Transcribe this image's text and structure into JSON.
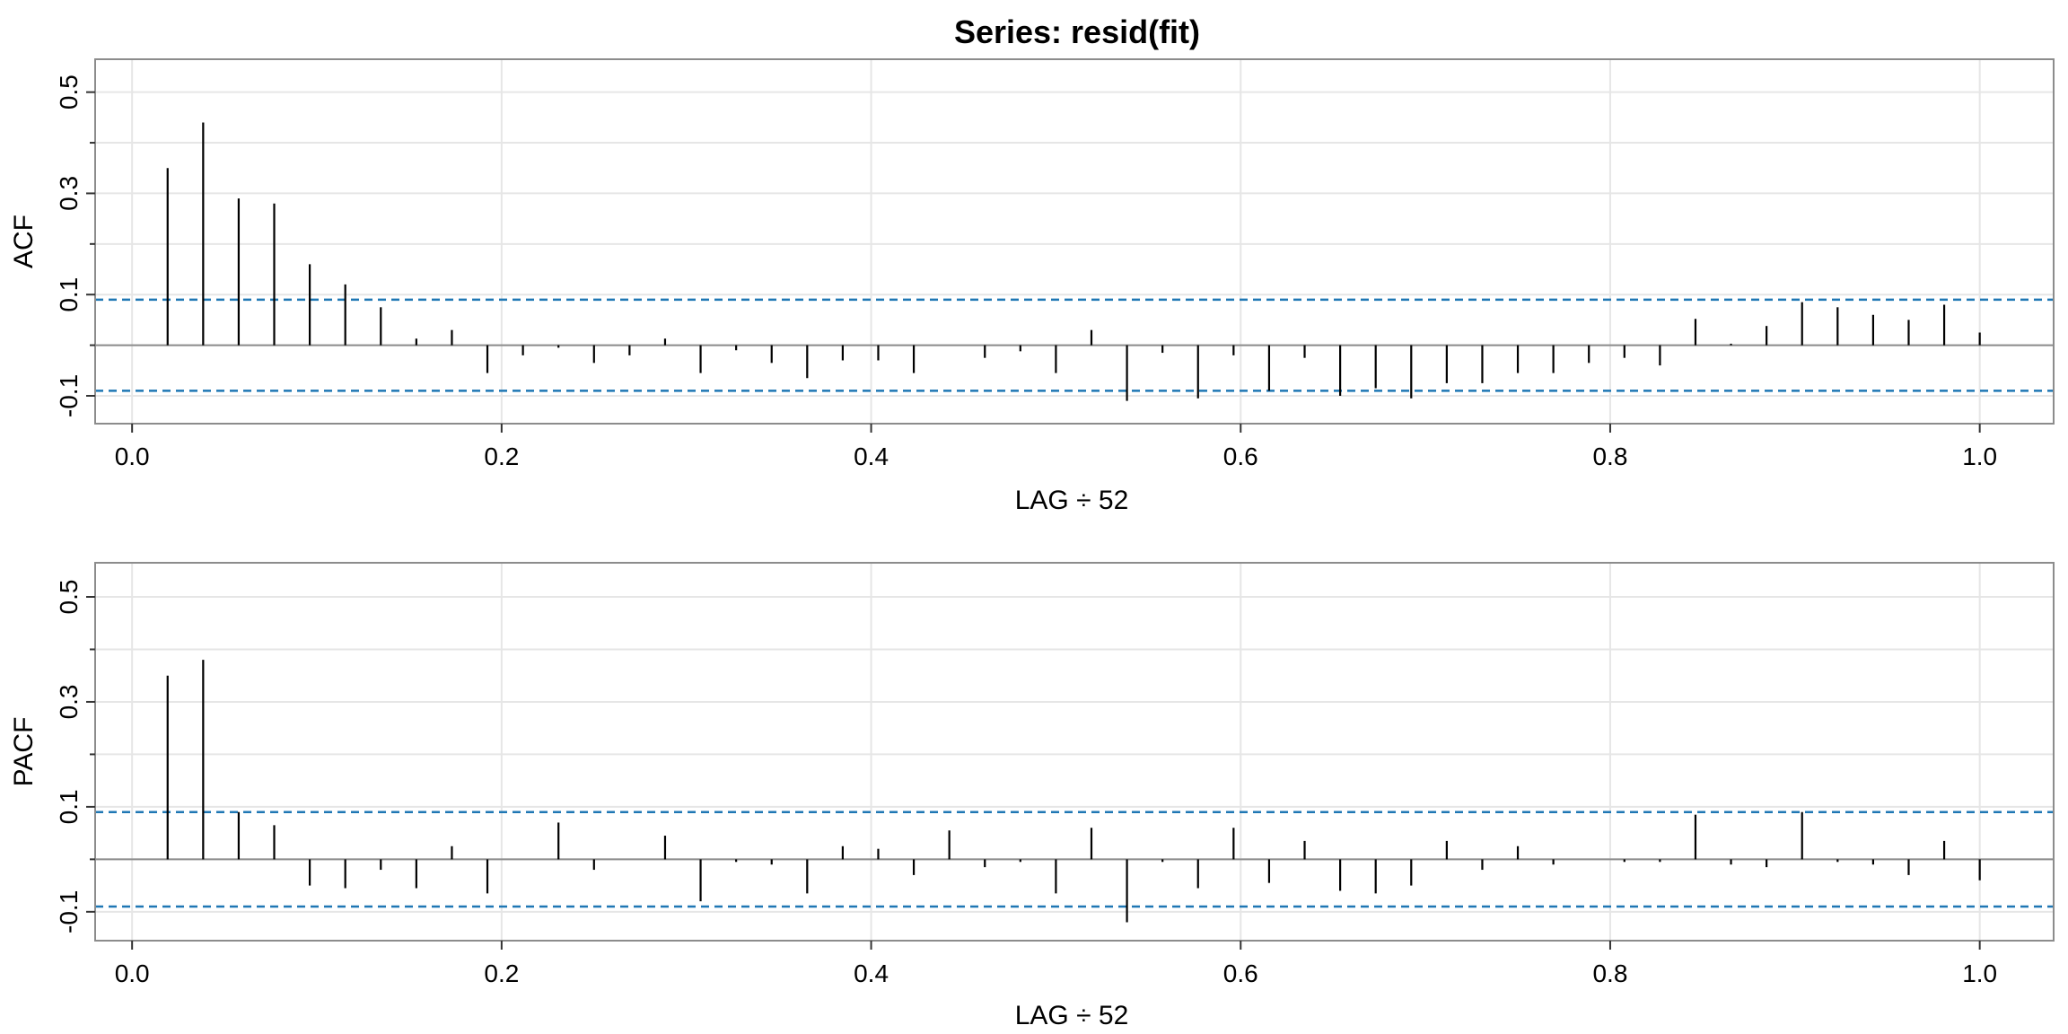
{
  "title": "Series:  resid(fit)",
  "colors": {
    "grid": "#e6e6e6",
    "frame": "#8c8c8c",
    "bars": "#000000",
    "confidence": "#1f77b4",
    "zero_line": "#8c8c8c"
  },
  "chart_data": [
    {
      "type": "bar",
      "name": "acf",
      "ylabel": "ACF",
      "xlabel": "LAG ÷ 52",
      "xlim": [
        -0.02,
        1.04
      ],
      "ylim": [
        -0.155,
        0.565
      ],
      "x_ticks": [
        0.0,
        0.2,
        0.4,
        0.6,
        0.8,
        1.0
      ],
      "x_tick_labels": [
        "0.0",
        "0.2",
        "0.4",
        "0.6",
        "0.8",
        "1.0"
      ],
      "y_ticks": [
        -0.1,
        0.1,
        0.3,
        0.5
      ],
      "y_tick_labels": [
        "-0.1",
        "0.1",
        "0.3",
        "0.5"
      ],
      "y_minor_ticks": [
        0.0,
        0.2,
        0.4
      ],
      "confidence_bound": 0.09,
      "grid": true,
      "lags": [
        1,
        2,
        3,
        4,
        5,
        6,
        7,
        8,
        9,
        10,
        11,
        12,
        13,
        14,
        15,
        16,
        17,
        18,
        19,
        20,
        21,
        22,
        23,
        24,
        25,
        26,
        27,
        28,
        29,
        30,
        31,
        32,
        33,
        34,
        35,
        36,
        37,
        38,
        39,
        40,
        41,
        42,
        43,
        44,
        45,
        46,
        47,
        48,
        49,
        50,
        51,
        52
      ],
      "lag_divisor": 52,
      "values": [
        0.35,
        0.44,
        0.29,
        0.28,
        0.16,
        0.12,
        0.075,
        0.013,
        0.03,
        -0.055,
        -0.02,
        -0.005,
        -0.035,
        -0.02,
        0.013,
        -0.055,
        -0.01,
        -0.035,
        -0.065,
        -0.03,
        -0.03,
        -0.055,
        0.0,
        -0.025,
        -0.012,
        -0.055,
        0.03,
        -0.11,
        -0.015,
        -0.105,
        -0.02,
        -0.09,
        -0.025,
        -0.1,
        -0.085,
        -0.105,
        -0.075,
        -0.075,
        -0.055,
        -0.055,
        -0.035,
        -0.025,
        -0.04,
        0.052,
        0.003,
        0.038,
        0.085,
        0.075,
        0.06,
        0.05,
        0.08,
        0.025
      ]
    },
    {
      "type": "bar",
      "name": "pacf",
      "ylabel": "PACF",
      "xlabel": "LAG ÷ 52",
      "xlim": [
        -0.02,
        1.04
      ],
      "ylim": [
        -0.155,
        0.565
      ],
      "x_ticks": [
        0.0,
        0.2,
        0.4,
        0.6,
        0.8,
        1.0
      ],
      "x_tick_labels": [
        "0.0",
        "0.2",
        "0.4",
        "0.6",
        "0.8",
        "1.0"
      ],
      "y_ticks": [
        -0.1,
        0.1,
        0.3,
        0.5
      ],
      "y_tick_labels": [
        "-0.1",
        "0.1",
        "0.3",
        "0.5"
      ],
      "y_minor_ticks": [
        0.0,
        0.2,
        0.4
      ],
      "confidence_bound": 0.09,
      "grid": true,
      "lags": [
        1,
        2,
        3,
        4,
        5,
        6,
        7,
        8,
        9,
        10,
        11,
        12,
        13,
        14,
        15,
        16,
        17,
        18,
        19,
        20,
        21,
        22,
        23,
        24,
        25,
        26,
        27,
        28,
        29,
        30,
        31,
        32,
        33,
        34,
        35,
        36,
        37,
        38,
        39,
        40,
        41,
        42,
        43,
        44,
        45,
        46,
        47,
        48,
        49,
        50,
        51,
        52
      ],
      "lag_divisor": 52,
      "values": [
        0.35,
        0.38,
        0.09,
        0.065,
        -0.05,
        -0.055,
        -0.02,
        -0.055,
        0.025,
        -0.065,
        0.0,
        0.07,
        -0.02,
        0.0,
        0.045,
        -0.08,
        -0.005,
        -0.01,
        -0.065,
        0.025,
        0.02,
        -0.03,
        0.055,
        -0.015,
        -0.005,
        -0.065,
        0.06,
        -0.12,
        -0.005,
        -0.055,
        0.06,
        -0.045,
        0.035,
        -0.06,
        -0.065,
        -0.05,
        0.035,
        -0.02,
        0.025,
        -0.01,
        0.0,
        -0.005,
        -0.005,
        0.085,
        -0.01,
        -0.015,
        0.09,
        -0.005,
        -0.01,
        -0.03,
        0.035,
        -0.04
      ]
    }
  ]
}
